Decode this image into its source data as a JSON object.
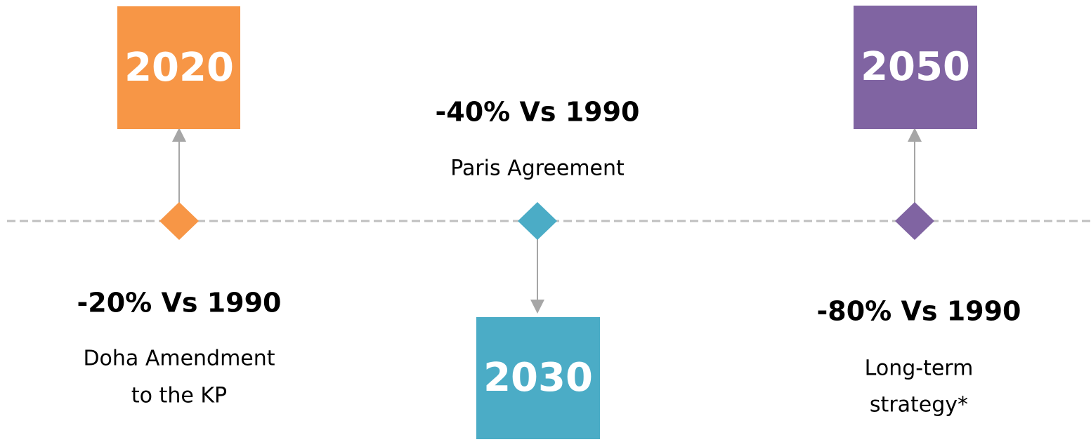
{
  "milestones": [
    {
      "year": "2020",
      "target": "-20% Vs 1990",
      "description": [
        "Doha Amendment",
        "to the KP"
      ]
    },
    {
      "year": "2030",
      "target": "-40% Vs 1990",
      "description": [
        "Paris Agreement"
      ]
    },
    {
      "year": "2050",
      "target": "-80% Vs 1990",
      "description": [
        "Long-term",
        "strategy*"
      ]
    }
  ]
}
